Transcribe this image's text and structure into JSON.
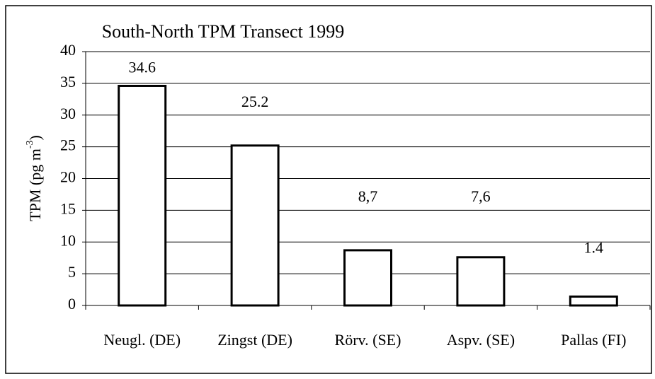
{
  "chart_data": {
    "type": "bar",
    "title": "South-North TPM Transect 1999",
    "y_label": {
      "text": "TPM  (pg m",
      "sup": "-3",
      "end": ")"
    },
    "categories": [
      "Neugl. (DE)",
      "Zingst (DE)",
      "Rörv. (SE)",
      "Aspv. (SE)",
      "Pallas  (FI)"
    ],
    "values": [
      34.6,
      25.2,
      8.7,
      7.6,
      1.4
    ],
    "value_labels": [
      "34.6",
      "25.2",
      "8,7",
      "7,6",
      "1.4"
    ],
    "color": "#ffffff",
    "ylim": [
      0,
      40
    ],
    "yticks": [
      0,
      5,
      10,
      15,
      20,
      25,
      30,
      35,
      40
    ],
    "grid": true
  }
}
